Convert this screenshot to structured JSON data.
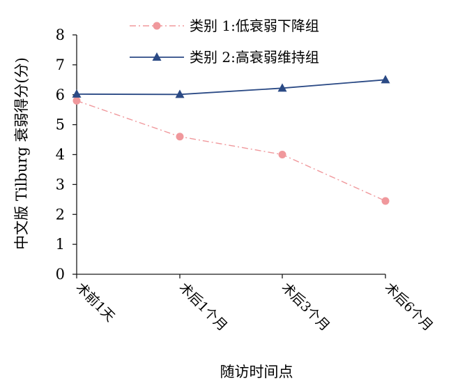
{
  "chart_data": {
    "type": "line",
    "title": "",
    "xlabel": "随访时间点",
    "ylabel": "中文版 Tilburg 衰弱得分(分)",
    "categories": [
      "术前1天",
      "术后1个月",
      "术后3个月",
      "术后6个月"
    ],
    "ylim": [
      0,
      8
    ],
    "yticks": [
      0,
      1,
      2,
      3,
      4,
      5,
      6,
      7,
      8
    ],
    "grid": false,
    "legend_position": "top",
    "series": [
      {
        "name": "类别 1:低衰弱下降组",
        "values": [
          5.8,
          4.6,
          4.0,
          2.45
        ],
        "color": "#f0989c",
        "line_style": "dash-dot",
        "marker": "circle"
      },
      {
        "name": "类别 2:高衰弱维持组",
        "values": [
          6.02,
          6.01,
          6.22,
          6.5
        ],
        "color": "#2b4a85",
        "line_style": "solid",
        "marker": "triangle"
      }
    ]
  }
}
